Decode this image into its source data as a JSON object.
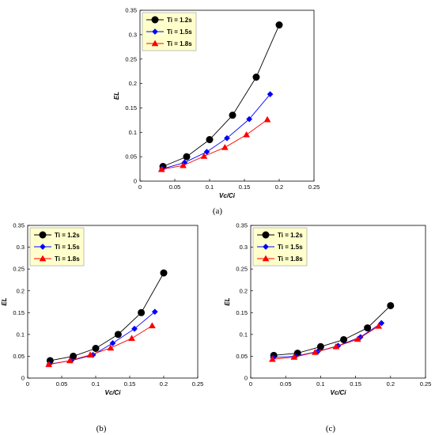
{
  "colors": {
    "s1": "#000000",
    "s2": "#0000ff",
    "s3": "#ff0000",
    "legend_bg": "#ffffcc"
  },
  "chart_data": [
    {
      "id": "a",
      "type": "line",
      "panel_label": "(a)",
      "xlabel": "Vc/Ci",
      "ylabel": "EL",
      "xlim": [
        0,
        0.25
      ],
      "ylim": [
        0,
        0.35
      ],
      "xticks": [
        "0",
        "0.05",
        "0.1",
        "0.15",
        "0.2",
        "0.25"
      ],
      "yticks": [
        "0",
        "0.05",
        "0.1",
        "0.15",
        "0.2",
        "0.25",
        "0.3",
        "0.35"
      ],
      "grid": false,
      "legend": "top-left",
      "series": [
        {
          "name": "Ti = 1.2s",
          "marker": "circle",
          "x": [
            0.033,
            0.067,
            0.1,
            0.133,
            0.167,
            0.2
          ],
          "y": [
            0.03,
            0.05,
            0.085,
            0.135,
            0.213,
            0.32
          ]
        },
        {
          "name": "Ti = 1.5s",
          "marker": "diamond",
          "x": [
            0.032,
            0.064,
            0.096,
            0.125,
            0.157,
            0.187
          ],
          "y": [
            0.025,
            0.038,
            0.06,
            0.088,
            0.127,
            0.178
          ]
        },
        {
          "name": "Ti = 1.8s",
          "marker": "triangle",
          "x": [
            0.031,
            0.062,
            0.092,
            0.122,
            0.153,
            0.183
          ],
          "y": [
            0.024,
            0.032,
            0.051,
            0.069,
            0.095,
            0.126
          ]
        }
      ]
    },
    {
      "id": "b",
      "type": "line",
      "panel_label": "(b)",
      "xlabel": "Vc/Ci",
      "ylabel": "EL",
      "xlim": [
        0,
        0.25
      ],
      "ylim": [
        0,
        0.35
      ],
      "xticks": [
        "0",
        "0.05",
        "0.1",
        "0.15",
        "0.2",
        "0.25"
      ],
      "yticks": [
        "0",
        "0.05",
        "0.1",
        "0.15",
        "0.2",
        "0.25",
        "0.3",
        "0.35"
      ],
      "grid": false,
      "legend": "top-left",
      "series": [
        {
          "name": "Ti = 1.2s",
          "marker": "circle",
          "x": [
            0.033,
            0.067,
            0.1,
            0.133,
            0.167,
            0.2
          ],
          "y": [
            0.04,
            0.05,
            0.068,
            0.1,
            0.15,
            0.241
          ]
        },
        {
          "name": "Ti = 1.5s",
          "marker": "diamond",
          "x": [
            0.032,
            0.064,
            0.096,
            0.125,
            0.157,
            0.187
          ],
          "y": [
            0.032,
            0.04,
            0.053,
            0.08,
            0.113,
            0.152
          ]
        },
        {
          "name": "Ti = 1.8s",
          "marker": "triangle",
          "x": [
            0.031,
            0.062,
            0.092,
            0.122,
            0.153,
            0.183
          ],
          "y": [
            0.031,
            0.04,
            0.053,
            0.069,
            0.091,
            0.12
          ]
        }
      ]
    },
    {
      "id": "c",
      "type": "line",
      "panel_label": "(c)",
      "xlabel": "Vc/Ci",
      "ylabel": "EL",
      "xlim": [
        0,
        0.25
      ],
      "ylim": [
        0,
        0.35
      ],
      "xticks": [
        "0",
        "0.05",
        "0.1",
        "0.15",
        "0.2",
        "0.25"
      ],
      "yticks": [
        "0",
        "0.05",
        "0.1",
        "0.15",
        "0.2",
        "0.25",
        "0.3",
        "0.35"
      ],
      "grid": false,
      "legend": "top-left",
      "series": [
        {
          "name": "Ti = 1.2s",
          "marker": "circle",
          "x": [
            0.033,
            0.067,
            0.1,
            0.133,
            0.167,
            0.2
          ],
          "y": [
            0.052,
            0.057,
            0.072,
            0.088,
            0.115,
            0.166
          ]
        },
        {
          "name": "Ti = 1.5s",
          "marker": "diamond",
          "x": [
            0.032,
            0.064,
            0.096,
            0.125,
            0.157,
            0.187
          ],
          "y": [
            0.047,
            0.05,
            0.061,
            0.074,
            0.094,
            0.126
          ]
        },
        {
          "name": "Ti = 1.8s",
          "marker": "triangle",
          "x": [
            0.031,
            0.062,
            0.092,
            0.122,
            0.153,
            0.183
          ],
          "y": [
            0.043,
            0.048,
            0.059,
            0.072,
            0.089,
            0.119
          ]
        }
      ]
    }
  ]
}
